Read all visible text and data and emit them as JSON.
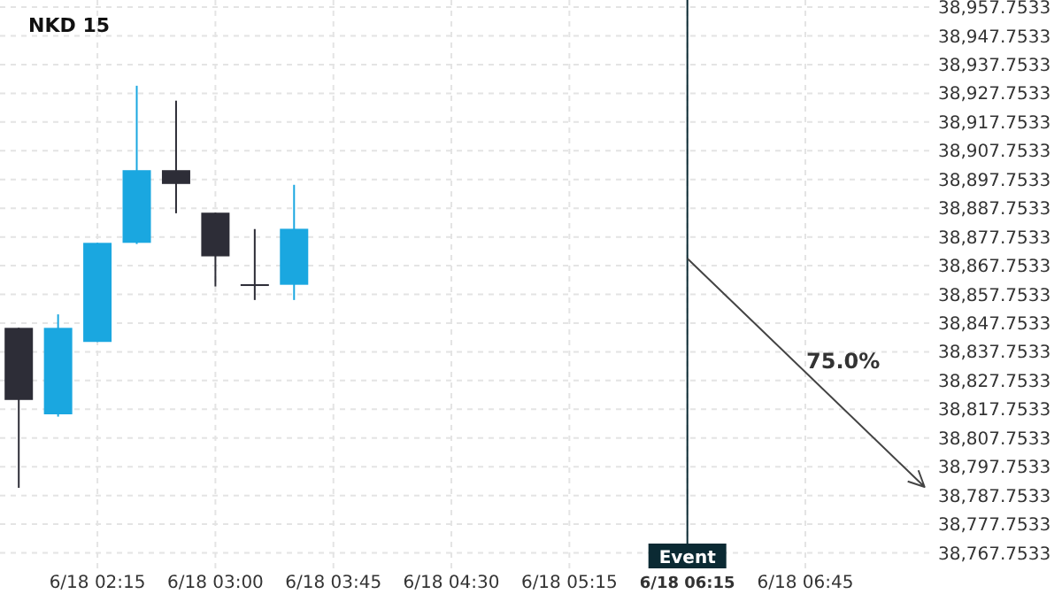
{
  "chart_data": {
    "type": "candlestick",
    "title": "NKD 15",
    "categories": [
      null,
      null,
      "6/18 02:15",
      null,
      null,
      "6/18 03:00",
      null,
      null,
      "6/18 03:45",
      null,
      null,
      "6/18 04:30",
      null,
      null,
      "6/18 05:15",
      null,
      null,
      "6/18 06:15",
      null,
      null,
      "6/18 06:45",
      null,
      null,
      null
    ],
    "ylim": [
      38761.75,
      38960.25
    ],
    "yticks": [
      {
        "value": 38767.7533,
        "label": "38,767.7533"
      },
      {
        "value": 38777.7533,
        "label": "38,777.7533"
      },
      {
        "value": 38787.7533,
        "label": "38,787.7533"
      },
      {
        "value": 38797.7533,
        "label": "38,797.7533"
      },
      {
        "value": 38807.7533,
        "label": "38,807.7533"
      },
      {
        "value": 38817.7533,
        "label": "38,817.7533"
      },
      {
        "value": 38827.7533,
        "label": "38,827.7533"
      },
      {
        "value": 38837.7533,
        "label": "38,837.7533"
      },
      {
        "value": 38847.7533,
        "label": "38,847.7533"
      },
      {
        "value": 38857.7533,
        "label": "38,857.7533"
      },
      {
        "value": 38867.7533,
        "label": "38,867.7533"
      },
      {
        "value": 38877.7533,
        "label": "38,877.7533"
      },
      {
        "value": 38887.7533,
        "label": "38,887.7533"
      },
      {
        "value": 38897.7533,
        "label": "38,897.7533"
      },
      {
        "value": 38907.7533,
        "label": "38,907.7533"
      },
      {
        "value": 38917.7533,
        "label": "38,917.7533"
      },
      {
        "value": 38927.7533,
        "label": "38,927.7533"
      },
      {
        "value": 38937.7533,
        "label": "38,937.7533"
      },
      {
        "value": 38947.7533,
        "label": "38,947.7533"
      },
      {
        "value": 38957.7533,
        "label": "38,957.7533"
      }
    ],
    "grid": true,
    "ohlc": [
      [
        38846.1,
        38846.1,
        38790.4,
        38821.0
      ],
      [
        38816.0,
        38850.8,
        38815.2,
        38846.1
      ],
      [
        38841.2,
        38875.7,
        38841.2,
        38875.7
      ],
      [
        38875.7,
        38930.4,
        38875.3,
        38901.0
      ],
      [
        38901.0,
        38925.2,
        38886.0,
        38896.2
      ],
      [
        38886.2,
        38886.2,
        38860.5,
        38871.0
      ],
      [
        38861.3,
        38880.5,
        38855.8,
        38861.3
      ],
      [
        38861.1,
        38895.9,
        38855.8,
        38880.6
      ],
      null,
      null,
      null,
      null,
      null,
      null,
      null,
      null,
      null,
      null,
      null,
      null,
      null,
      null,
      null,
      null
    ],
    "colors": [
      "#2d2d37",
      "#1aa7e0",
      "#1aa7e0",
      "#1aa7e0",
      "#2d2d37",
      "#2d2d37",
      "#2d2d37",
      "#1aa7e0",
      null,
      null,
      null,
      null,
      null,
      null,
      null,
      null,
      null,
      null,
      null,
      null,
      null,
      null,
      null,
      null
    ],
    "ref_lines": [
      {
        "axis": "x",
        "value": "6/18 06:15",
        "label": "Event",
        "color": "#0b2a33"
      }
    ],
    "annotations": [
      "75.0%"
    ]
  }
}
